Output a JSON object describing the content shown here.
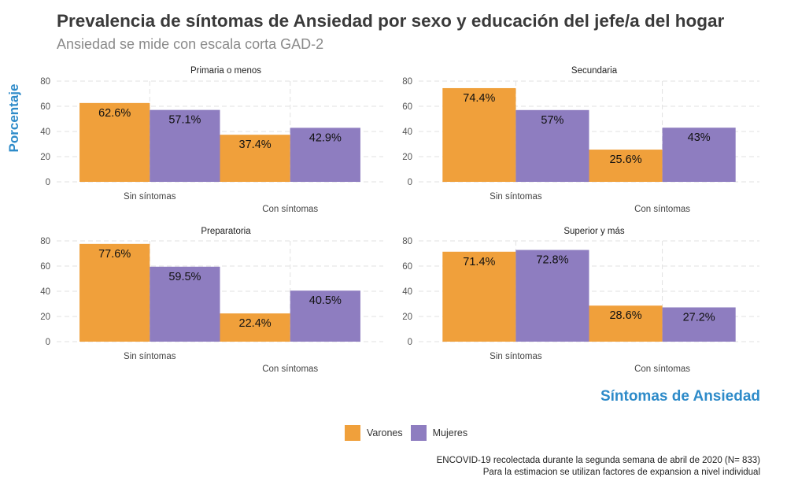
{
  "title": "Prevalencia de síntomas de Ansiedad por sexo y educación del jefe/a del hogar",
  "subtitle": "Ansiedad se mide con escala corta GAD-2",
  "colors": {
    "varones": "#F0A03B",
    "mujeres": "#8E7DC0",
    "axis_title": "#2E8BC9",
    "grid": "#e2e2e2"
  },
  "chart_data": {
    "type": "bar",
    "ylabel": "Porcentaje",
    "xlabel": "Síntomas de Ansiedad",
    "ylim": [
      0,
      80
    ],
    "yticks": [
      "0",
      "20",
      "40",
      "60",
      "80"
    ],
    "categories": [
      "Sin síntomas",
      "Con síntomas"
    ],
    "series_names": [
      "Varones",
      "Mujeres"
    ],
    "panels": [
      {
        "title": "Primaria o menos",
        "varones": [
          62.6,
          37.4
        ],
        "mujeres": [
          57.1,
          42.9
        ],
        "labels": {
          "varones": [
            "62.6%",
            "37.4%"
          ],
          "mujeres": [
            "57.1%",
            "42.9%"
          ]
        }
      },
      {
        "title": "Secundaria",
        "varones": [
          74.4,
          25.6
        ],
        "mujeres": [
          57,
          43
        ],
        "labels": {
          "varones": [
            "74.4%",
            "25.6%"
          ],
          "mujeres": [
            "57%",
            "43%"
          ]
        }
      },
      {
        "title": "Preparatoria",
        "varones": [
          77.6,
          22.4
        ],
        "mujeres": [
          59.5,
          40.5
        ],
        "labels": {
          "varones": [
            "77.6%",
            "22.4%"
          ],
          "mujeres": [
            "59.5%",
            "40.5%"
          ]
        }
      },
      {
        "title": "Superior y más",
        "varones": [
          71.4,
          28.6
        ],
        "mujeres": [
          72.8,
          27.2
        ],
        "labels": {
          "varones": [
            "71.4%",
            "28.6%"
          ],
          "mujeres": [
            "72.8%",
            "27.2%"
          ]
        }
      }
    ]
  },
  "legend": {
    "items": [
      "Varones",
      "Mujeres"
    ]
  },
  "caption": {
    "line1": "ENCOVID-19 recolectada durante la segunda semana de abril de 2020 (N= 833)",
    "line2": "Para la estimacion se utilizan factores de expansion a nivel individual"
  }
}
